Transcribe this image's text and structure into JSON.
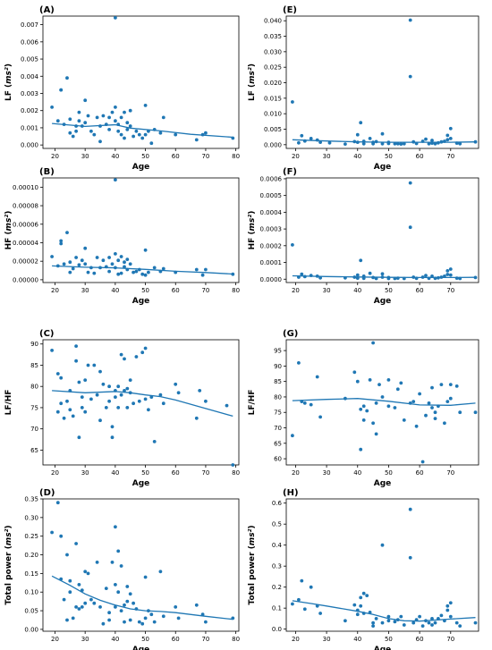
{
  "figure": {
    "colors": {
      "series": "#1f77b4",
      "axis": "#000000",
      "text": "#000000"
    }
  },
  "chart_data": [
    {
      "id": "A",
      "panel_label": "(A)",
      "type": "scatter",
      "xlabel": "Age",
      "ylabel": "LF (ms²)",
      "xlim": [
        16,
        81
      ],
      "ylim": [
        -0.0002,
        0.0075
      ],
      "xticks": [
        20,
        30,
        40,
        50,
        60,
        70,
        80
      ],
      "yticks": [
        0.0,
        0.001,
        0.002,
        0.003,
        0.004,
        0.005,
        0.006,
        0.007
      ],
      "ytick_labels": [
        "0.000",
        "0.001",
        "0.002",
        "0.003",
        "0.004",
        "0.005",
        "0.006",
        "0.007"
      ],
      "x": [
        19,
        21,
        22,
        22,
        23,
        24,
        25,
        25,
        26,
        27,
        27,
        28,
        28,
        29,
        30,
        30,
        31,
        32,
        33,
        34,
        35,
        35,
        36,
        37,
        38,
        38,
        39,
        40,
        40,
        40,
        41,
        41,
        42,
        42,
        43,
        43,
        44,
        44,
        45,
        45,
        46,
        47,
        48,
        49,
        50,
        50,
        51,
        52,
        53,
        55,
        56,
        60,
        67,
        69,
        70,
        79
      ],
      "y": [
        0.0022,
        0.0014,
        0.0032,
        0.0032,
        0.0012,
        0.0039,
        0.0015,
        0.0007,
        0.0005,
        0.0011,
        0.0008,
        0.0019,
        0.0014,
        0.0011,
        0.0026,
        0.0013,
        0.0017,
        0.0008,
        0.0006,
        0.0016,
        0.0011,
        0.0002,
        0.0017,
        0.0012,
        0.0009,
        0.0016,
        0.0019,
        0.0074,
        0.0022,
        0.0014,
        0.0012,
        0.0008,
        0.0016,
        0.0006,
        0.0019,
        0.0004,
        0.0013,
        0.0009,
        0.002,
        0.0011,
        0.0005,
        0.0008,
        0.0006,
        0.0004,
        0.0023,
        0.0006,
        0.0008,
        0.0001,
        0.0009,
        0.0007,
        0.0016,
        0.0006,
        0.0003,
        0.0006,
        0.0007,
        0.0004
      ],
      "trend": {
        "x": [
          19,
          30,
          40,
          45,
          55,
          65,
          79
        ],
        "y": [
          0.00125,
          0.00108,
          0.00118,
          0.00098,
          0.00082,
          0.00062,
          0.00045
        ]
      }
    },
    {
      "id": "E",
      "panel_label": "(E)",
      "type": "scatter",
      "xlabel": "Age",
      "ylabel": "LF (ms²)",
      "xlim": [
        17,
        79
      ],
      "ylim": [
        -0.0012,
        0.0415
      ],
      "xticks": [
        20,
        30,
        40,
        50,
        60,
        70
      ],
      "yticks": [
        0.0,
        0.005,
        0.01,
        0.015,
        0.02,
        0.025,
        0.03,
        0.035,
        0.04
      ],
      "ytick_labels": [
        "0.000",
        "0.005",
        "0.010",
        "0.015",
        "0.020",
        "0.025",
        "0.030",
        "0.035",
        "0.040"
      ],
      "x": [
        19,
        21,
        22,
        23,
        25,
        27,
        28,
        31,
        36,
        39,
        40,
        40,
        41,
        42,
        42,
        44,
        45,
        45,
        46,
        48,
        48,
        50,
        50,
        52,
        53,
        54,
        55,
        57,
        57,
        58,
        59,
        61,
        62,
        63,
        64,
        64,
        65,
        66,
        67,
        68,
        69,
        69,
        70,
        70,
        72,
        73,
        78
      ],
      "y": [
        0.0138,
        0.0006,
        0.0029,
        0.0012,
        0.002,
        0.0015,
        0.0008,
        0.0006,
        0.0002,
        0.001,
        0.0032,
        0.0008,
        0.0071,
        0.0011,
        0.0003,
        0.002,
        0.0008,
        0.0003,
        0.001,
        0.0003,
        0.0035,
        0.0004,
        0.0008,
        0.0003,
        0.0003,
        0.0002,
        0.0003,
        0.0402,
        0.022,
        0.0009,
        0.0004,
        0.0011,
        0.0018,
        0.0003,
        0.0014,
        0.0005,
        0.0003,
        0.0006,
        0.0009,
        0.0011,
        0.0016,
        0.003,
        0.002,
        0.0052,
        0.0005,
        0.0003,
        0.0009
      ],
      "trend": {
        "x": [
          19,
          30,
          40,
          50,
          60,
          70,
          78
        ],
        "y": [
          0.0016,
          0.0012,
          0.0009,
          0.0008,
          0.0008,
          0.0008,
          0.0009
        ]
      }
    },
    {
      "id": "B",
      "panel_label": "(B)",
      "type": "scatter",
      "xlabel": "Age",
      "ylabel": "HF (ms²)",
      "xlim": [
        16,
        81
      ],
      "ylim": [
        -3e-06,
        0.00011
      ],
      "xticks": [
        20,
        30,
        40,
        50,
        60,
        70,
        80
      ],
      "yticks": [
        0.0,
        2e-05,
        4e-05,
        6e-05,
        8e-05,
        0.0001
      ],
      "ytick_labels": [
        "0.00000",
        "0.00002",
        "0.00004",
        "0.00006",
        "0.00008",
        "0.00010"
      ],
      "x": [
        19,
        21,
        22,
        22,
        23,
        24,
        25,
        25,
        26,
        27,
        28,
        29,
        30,
        30,
        31,
        32,
        33,
        34,
        35,
        36,
        37,
        38,
        38,
        39,
        40,
        40,
        40,
        41,
        41,
        42,
        42,
        43,
        43,
        44,
        44,
        45,
        46,
        47,
        48,
        49,
        50,
        50,
        51,
        53,
        55,
        56,
        60,
        67,
        69,
        70,
        79
      ],
      "y": [
        2.5e-05,
        1.5e-05,
        3.9e-05,
        4.2e-05,
        1.7e-05,
        5.1e-05,
        1.9e-05,
        8e-06,
        1.2e-05,
        2.4e-05,
        1.6e-05,
        2.1e-05,
        3.4e-05,
        1.7e-05,
        8e-06,
        1.3e-05,
        7e-06,
        2.4e-05,
        1.3e-05,
        2.1e-05,
        1.4e-05,
        9e-06,
        2.4e-05,
        1.7e-05,
        0.000108,
        2.8e-05,
        1.3e-05,
        2.1e-05,
        6e-06,
        2.5e-05,
        7e-06,
        1.9e-05,
        1.4e-05,
        1.1e-05,
        2.2e-05,
        1.7e-05,
        8e-06,
        9e-06,
        1.1e-05,
        6e-06,
        3.2e-05,
        5e-06,
        8e-06,
        1.3e-05,
        9e-06,
        1.2e-05,
        8e-06,
        1.1e-05,
        5e-06,
        1.1e-05,
        6e-06
      ],
      "trend": {
        "x": [
          19,
          30,
          40,
          50,
          60,
          70,
          79
        ],
        "y": [
          1.5e-05,
          1.35e-05,
          1.28e-05,
          1.12e-05,
          9.2e-06,
          7.8e-06,
          6.2e-06
        ]
      }
    },
    {
      "id": "F",
      "panel_label": "(F)",
      "type": "scatter",
      "xlabel": "Age",
      "ylabel": "HF (ms²)",
      "xlim": [
        17,
        79
      ],
      "ylim": [
        -2e-05,
        0.000605
      ],
      "xticks": [
        20,
        30,
        40,
        50,
        60,
        70
      ],
      "yticks": [
        0.0,
        0.0001,
        0.0002,
        0.0003,
        0.0004,
        0.0005,
        0.0006
      ],
      "ytick_labels": [
        "0.0000",
        "0.0001",
        "0.0002",
        "0.0003",
        "0.0004",
        "0.0005",
        "0.0006"
      ],
      "x": [
        19,
        21,
        22,
        23,
        25,
        27,
        28,
        36,
        39,
        40,
        40,
        41,
        42,
        42,
        44,
        45,
        46,
        48,
        48,
        50,
        50,
        52,
        53,
        55,
        57,
        57,
        58,
        59,
        61,
        62,
        63,
        64,
        65,
        66,
        67,
        68,
        69,
        69,
        70,
        70,
        72,
        73,
        78
      ],
      "y": [
        0.000205,
        1.2e-05,
        3e-05,
        1.5e-05,
        2.2e-05,
        1.8e-05,
        8e-06,
        8e-06,
        1.2e-05,
        2.5e-05,
        6e-06,
        0.000112,
        1.8e-05,
        5e-06,
        3.5e-05,
        1e-05,
        4e-06,
        1.2e-05,
        3.2e-05,
        4e-06,
        1e-05,
        4e-06,
        6e-06,
        4e-06,
        0.000575,
        0.00031,
        1.2e-05,
        5e-06,
        1.2e-05,
        2.2e-05,
        5e-06,
        1.8e-05,
        5e-06,
        8e-06,
        1.2e-05,
        1.8e-05,
        2.8e-05,
        5e-05,
        2.5e-05,
        6e-05,
        6e-06,
        4e-06,
        1e-05
      ],
      "trend": {
        "x": [
          19,
          30,
          40,
          50,
          60,
          70,
          78
        ],
        "y": [
          2e-05,
          1.6e-05,
          1.3e-05,
          1.1e-05,
          1e-05,
          1e-05,
          1.1e-05
        ]
      }
    },
    {
      "id": "C",
      "panel_label": "(C)",
      "type": "scatter",
      "xlabel": "Age",
      "ylabel": "LF/HF",
      "xlim": [
        16,
        81
      ],
      "ylim": [
        61.5,
        91
      ],
      "xticks": [
        20,
        30,
        40,
        50,
        60,
        70,
        80
      ],
      "yticks": [
        65,
        70,
        75,
        80,
        85,
        90
      ],
      "ytick_labels": [
        "65",
        "70",
        "75",
        "80",
        "85",
        "90"
      ],
      "x": [
        19,
        21,
        21,
        22,
        22,
        23,
        24,
        25,
        25,
        26,
        27,
        27,
        28,
        28,
        29,
        29,
        30,
        30,
        31,
        32,
        33,
        34,
        35,
        35,
        36,
        37,
        38,
        38,
        39,
        39,
        40,
        40,
        41,
        41,
        42,
        42,
        43,
        43,
        44,
        44,
        45,
        45,
        46,
        47,
        48,
        49,
        50,
        50,
        51,
        52,
        53,
        55,
        56,
        60,
        61,
        67,
        68,
        70,
        77,
        79
      ],
      "y": [
        88.5,
        83.0,
        74.0,
        82.0,
        76.0,
        72.5,
        76.5,
        74.5,
        79.0,
        73.0,
        86.0,
        89.5,
        68.0,
        81.0,
        75.0,
        77.5,
        81.5,
        74.0,
        85.0,
        77.0,
        85.0,
        78.0,
        83.5,
        72.0,
        80.5,
        75.0,
        80.0,
        76.5,
        68.0,
        70.5,
        79.0,
        77.5,
        80.0,
        75.0,
        87.5,
        78.0,
        86.5,
        79.0,
        75.0,
        79.5,
        81.5,
        78.5,
        76.0,
        87.0,
        76.5,
        88.0,
        89.0,
        77.0,
        74.5,
        77.5,
        67.0,
        78.0,
        76.0,
        80.5,
        78.5,
        72.5,
        79.0,
        76.5,
        75.5,
        61.5
      ],
      "trend": {
        "x": [
          19,
          30,
          40,
          45,
          50,
          55,
          60,
          70,
          79
        ],
        "y": [
          79.0,
          78.5,
          78.8,
          78.5,
          78.0,
          77.6,
          76.8,
          74.8,
          73.0
        ]
      }
    },
    {
      "id": "G",
      "panel_label": "(G)",
      "type": "scatter",
      "xlabel": "Age",
      "ylabel": "LF/HF",
      "xlim": [
        17,
        79
      ],
      "ylim": [
        58,
        98.5
      ],
      "xticks": [
        20,
        30,
        40,
        50,
        60,
        70
      ],
      "yticks": [
        60,
        65,
        70,
        75,
        80,
        85,
        90,
        95
      ],
      "ytick_labels": [
        "60",
        "65",
        "70",
        "75",
        "80",
        "85",
        "90",
        "95"
      ],
      "x": [
        19,
        21,
        22,
        23,
        25,
        27,
        28,
        36,
        39,
        40,
        41,
        41,
        42,
        42,
        43,
        44,
        45,
        45,
        46,
        46,
        47,
        48,
        50,
        50,
        52,
        53,
        54,
        55,
        57,
        58,
        59,
        60,
        61,
        62,
        63,
        64,
        64,
        65,
        65,
        66,
        67,
        68,
        69,
        70,
        70,
        72,
        73,
        78
      ],
      "y": [
        67.5,
        91.0,
        78.5,
        78.0,
        77.5,
        86.5,
        73.5,
        79.5,
        88.0,
        85.0,
        76.0,
        63.0,
        77.0,
        72.5,
        75.5,
        85.5,
        71.5,
        97.5,
        78.0,
        68.0,
        84.0,
        80.0,
        77.0,
        85.5,
        76.5,
        82.5,
        84.5,
        72.5,
        78.0,
        78.5,
        70.5,
        81.0,
        59.0,
        74.0,
        78.0,
        76.5,
        83.0,
        75.0,
        73.0,
        77.0,
        84.0,
        71.5,
        78.5,
        84.0,
        79.5,
        83.5,
        75.0,
        75.0
      ],
      "trend": {
        "x": [
          19,
          30,
          40,
          50,
          60,
          70,
          78
        ],
        "y": [
          78.8,
          79.2,
          79.5,
          78.6,
          77.4,
          77.3,
          78.0
        ]
      }
    },
    {
      "id": "D",
      "panel_label": "(D)",
      "type": "scatter",
      "xlabel": "Age",
      "ylabel": "Total power (ms²)",
      "xlim": [
        16,
        81
      ],
      "ylim": [
        -0.005,
        0.35
      ],
      "xticks": [
        20,
        30,
        40,
        50,
        60,
        70,
        80
      ],
      "yticks": [
        0.0,
        0.05,
        0.1,
        0.15,
        0.2,
        0.25,
        0.3,
        0.35
      ],
      "ytick_labels": [
        "0.00",
        "0.05",
        "0.10",
        "0.15",
        "0.20",
        "0.25",
        "0.30",
        "0.35"
      ],
      "x": [
        19,
        21,
        22,
        22,
        23,
        24,
        24,
        25,
        25,
        26,
        27,
        27,
        28,
        28,
        29,
        29,
        30,
        30,
        31,
        32,
        33,
        34,
        35,
        36,
        37,
        38,
        38,
        39,
        40,
        40,
        40,
        41,
        41,
        42,
        42,
        43,
        43,
        44,
        44,
        45,
        45,
        46,
        47,
        48,
        49,
        50,
        50,
        51,
        52,
        53,
        55,
        56,
        60,
        61,
        67,
        69,
        70,
        79
      ],
      "y": [
        0.26,
        0.34,
        0.135,
        0.25,
        0.08,
        0.2,
        0.025,
        0.13,
        0.1,
        0.03,
        0.23,
        0.06,
        0.12,
        0.055,
        0.105,
        0.06,
        0.155,
        0.07,
        0.15,
        0.08,
        0.07,
        0.18,
        0.06,
        0.015,
        0.11,
        0.025,
        0.045,
        0.18,
        0.275,
        0.12,
        0.06,
        0.21,
        0.1,
        0.17,
        0.05,
        0.065,
        0.02,
        0.115,
        0.075,
        0.095,
        0.025,
        0.07,
        0.055,
        0.02,
        0.015,
        0.03,
        0.14,
        0.05,
        0.04,
        0.02,
        0.155,
        0.035,
        0.06,
        0.03,
        0.065,
        0.04,
        0.02,
        0.03
      ],
      "trend": {
        "x": [
          19,
          25,
          30,
          35,
          40,
          45,
          50,
          55,
          60,
          70,
          79
        ],
        "y": [
          0.143,
          0.118,
          0.095,
          0.078,
          0.065,
          0.055,
          0.05,
          0.048,
          0.045,
          0.035,
          0.027
        ]
      }
    },
    {
      "id": "H",
      "panel_label": "(H)",
      "type": "scatter",
      "xlabel": "Age",
      "ylabel": "Total power (ms²)",
      "xlim": [
        17,
        79
      ],
      "ylim": [
        -0.01,
        0.62
      ],
      "xticks": [
        20,
        30,
        40,
        50,
        60,
        70
      ],
      "yticks": [
        0.0,
        0.1,
        0.2,
        0.3,
        0.4,
        0.5,
        0.6
      ],
      "ytick_labels": [
        "0.0",
        "0.1",
        "0.2",
        "0.3",
        "0.4",
        "0.5",
        "0.6"
      ],
      "x": [
        19,
        21,
        22,
        23,
        25,
        27,
        28,
        36,
        39,
        40,
        40,
        41,
        41,
        42,
        42,
        43,
        44,
        45,
        45,
        46,
        48,
        48,
        50,
        50,
        52,
        53,
        54,
        55,
        57,
        57,
        58,
        59,
        60,
        61,
        62,
        63,
        64,
        64,
        65,
        66,
        67,
        68,
        69,
        69,
        70,
        70,
        72,
        73,
        78
      ],
      "y": [
        0.12,
        0.14,
        0.23,
        0.095,
        0.2,
        0.11,
        0.075,
        0.04,
        0.115,
        0.07,
        0.09,
        0.15,
        0.11,
        0.17,
        0.075,
        0.16,
        0.08,
        0.03,
        0.015,
        0.05,
        0.4,
        0.03,
        0.04,
        0.06,
        0.035,
        0.045,
        0.06,
        0.02,
        0.57,
        0.34,
        0.03,
        0.045,
        0.06,
        0.015,
        0.04,
        0.03,
        0.02,
        0.05,
        0.03,
        0.05,
        0.065,
        0.04,
        0.09,
        0.11,
        0.06,
        0.125,
        0.03,
        0.015,
        0.03
      ],
      "trend": {
        "x": [
          19,
          25,
          30,
          40,
          45,
          50,
          55,
          60,
          70,
          78
        ],
        "y": [
          0.135,
          0.122,
          0.11,
          0.085,
          0.07,
          0.05,
          0.04,
          0.038,
          0.048,
          0.055
        ]
      }
    }
  ]
}
